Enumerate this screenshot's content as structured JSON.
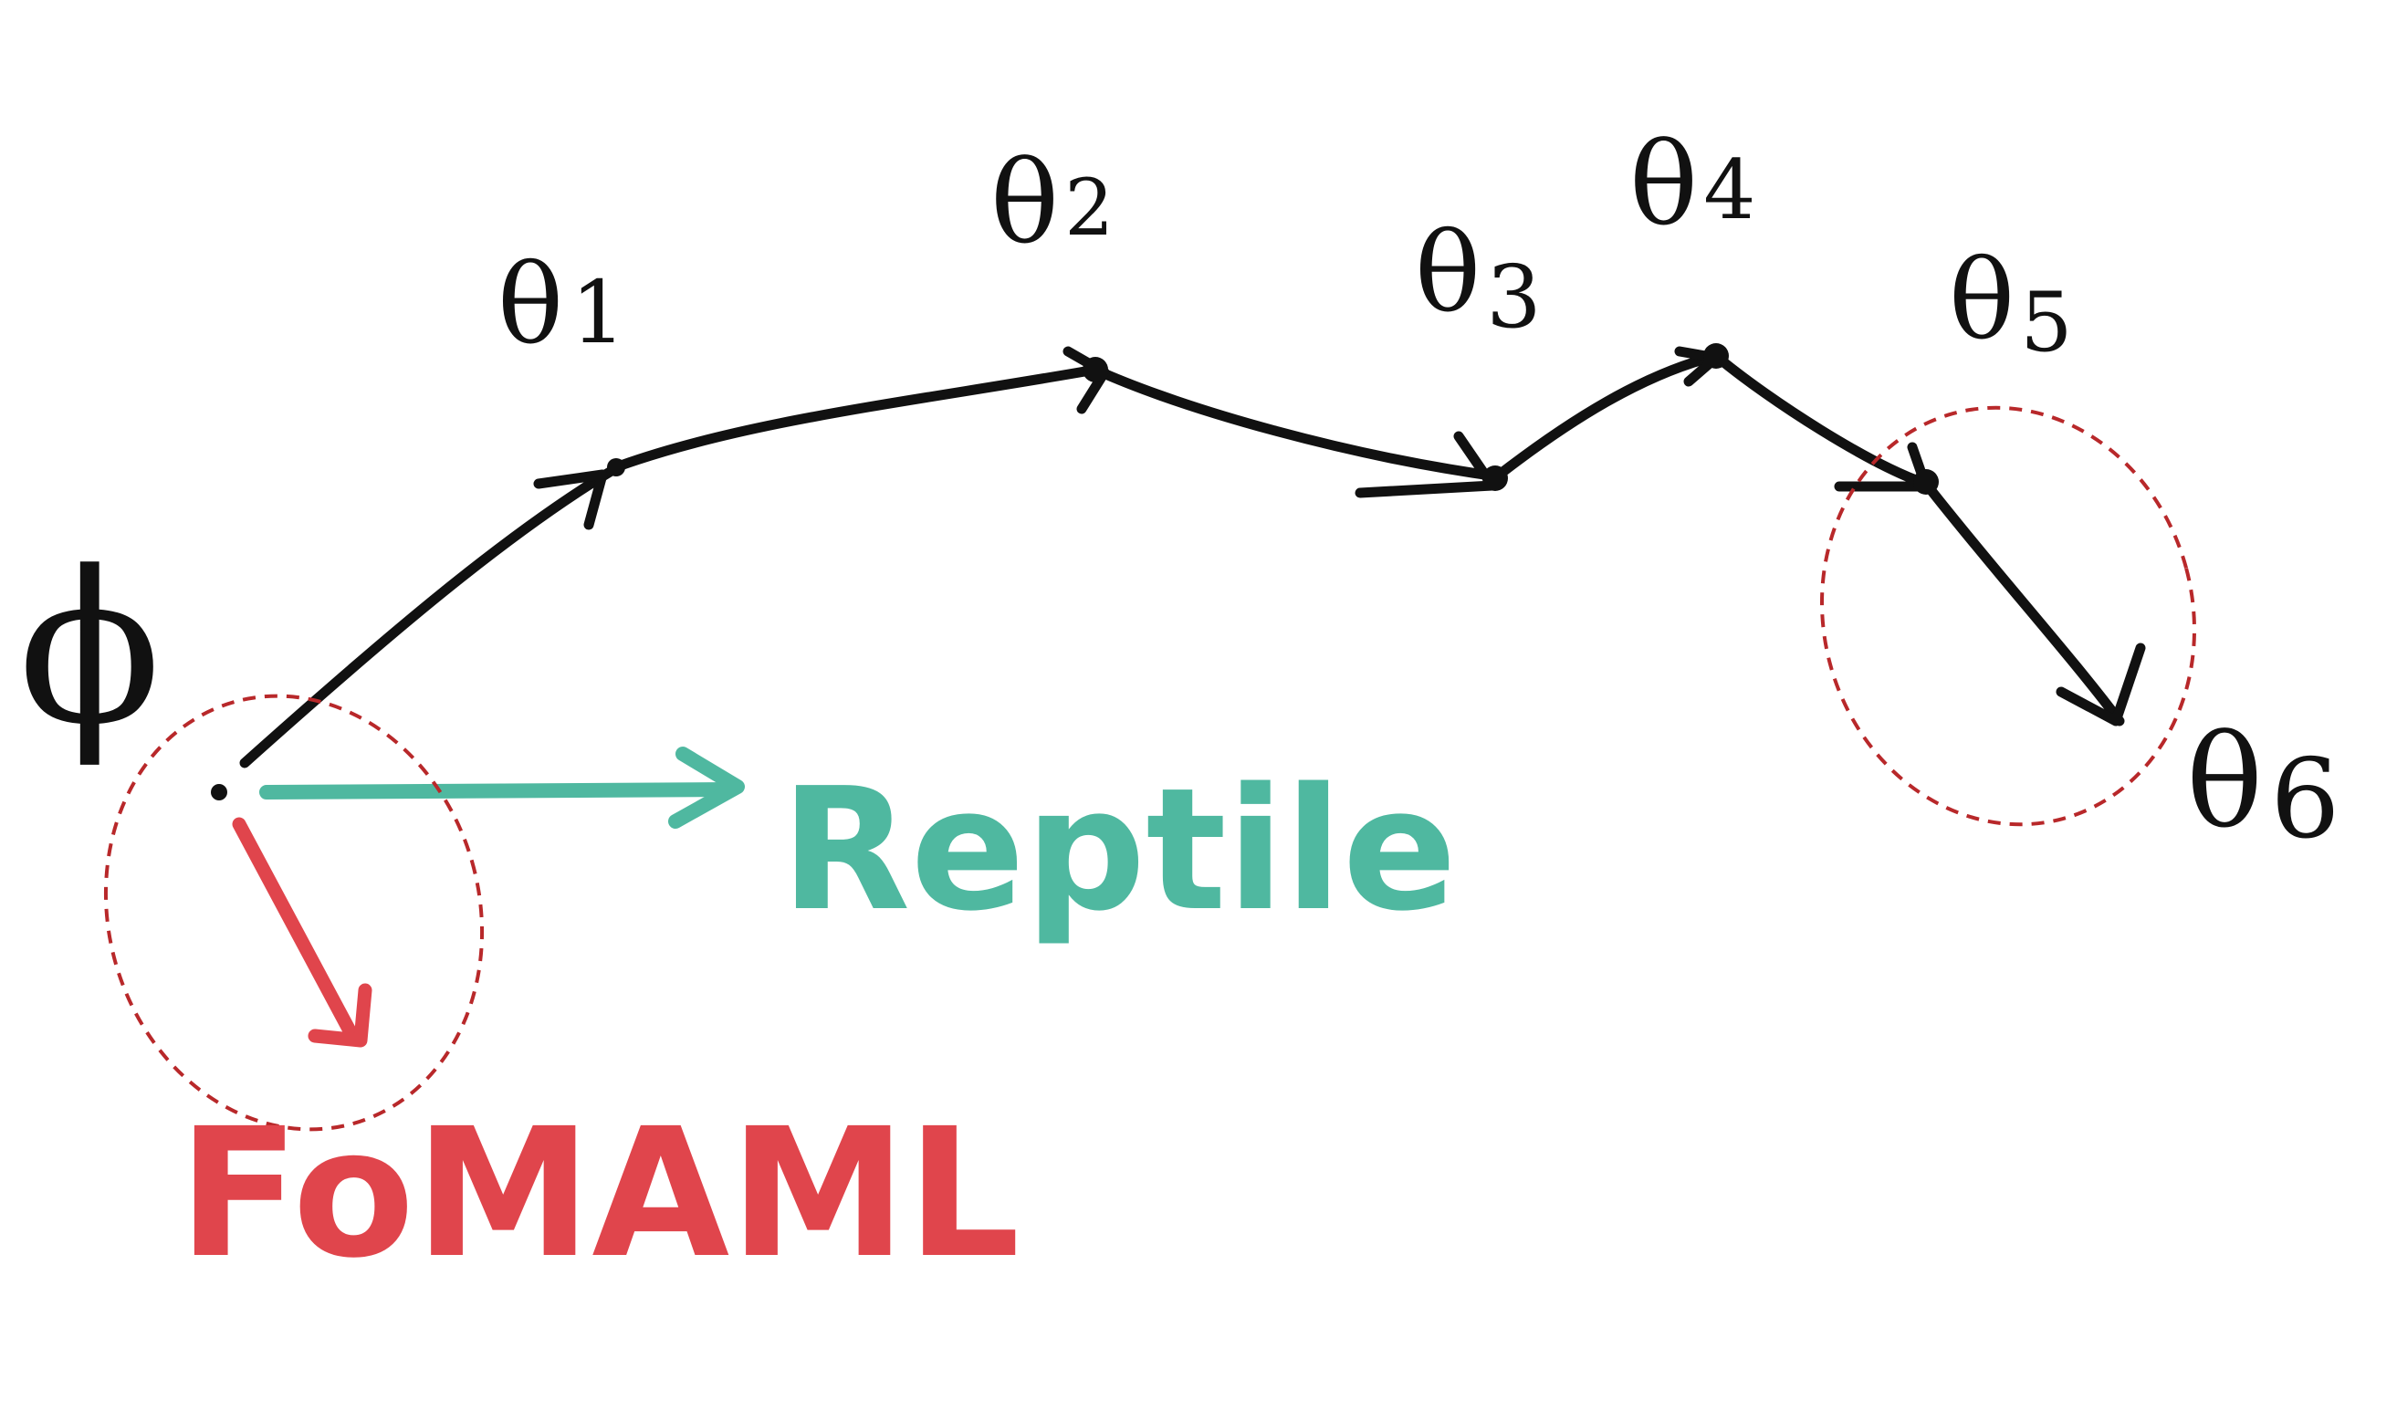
{
  "diagram": {
    "start_label": "ϕ",
    "nodes": [
      {
        "symbol": "θ",
        "index": "1"
      },
      {
        "symbol": "θ",
        "index": "2"
      },
      {
        "symbol": "θ",
        "index": "3"
      },
      {
        "symbol": "θ",
        "index": "4"
      },
      {
        "symbol": "θ",
        "index": "5"
      },
      {
        "symbol": "θ",
        "index": "6"
      }
    ],
    "reptile_label": "Reptile",
    "fomaml_label": "FoMAML",
    "colors": {
      "path": "#111111",
      "reptile": "#4fb8a0",
      "fomaml": "#e0454c",
      "highlight_circle": "#b8282a"
    }
  }
}
